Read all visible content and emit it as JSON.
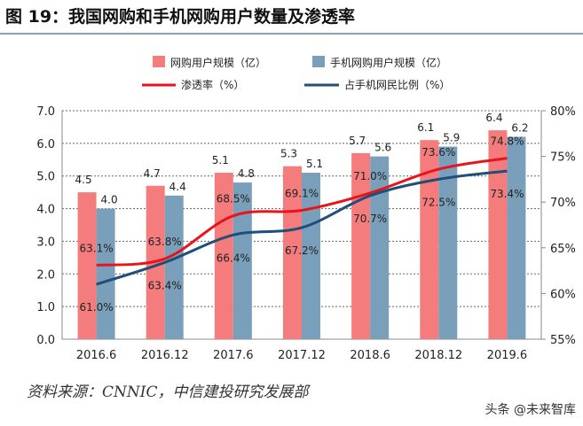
{
  "title": "图 19：我国网购和手机网购用户数量及渗透率",
  "source": "资料来源：CNNIC，中信建投研究发展部",
  "watermark": "头条 @未来智库",
  "chart_data": {
    "type": "bar+line",
    "categories": [
      "2016.6",
      "2016.12",
      "2017.6",
      "2017.12",
      "2018.6",
      "2018.12",
      "2019.6"
    ],
    "bar_series": [
      {
        "name": "网购用户规模（亿）",
        "color": "#f47c7c",
        "values": [
          4.5,
          4.7,
          5.1,
          5.3,
          5.7,
          6.1,
          6.4
        ],
        "labels": [
          "4.5",
          "4.7",
          "5.1",
          "5.3",
          "5.7",
          "6.1",
          "6.4"
        ]
      },
      {
        "name": "手机网购用户规模（亿）",
        "color": "#7a9fbb",
        "values": [
          4.0,
          4.4,
          4.8,
          5.1,
          5.6,
          5.9,
          6.2
        ],
        "labels": [
          "4.0",
          "4.4",
          "4.8",
          "5.1",
          "5.6",
          "5.9",
          "6.2"
        ]
      }
    ],
    "line_series": [
      {
        "name": "渗透率（%）",
        "color": "#e8131b",
        "values": [
          63.1,
          63.8,
          68.5,
          69.1,
          71.0,
          73.6,
          74.8
        ],
        "labels": [
          "63.1%",
          "63.8%",
          "68.5%",
          "69.1%",
          "71.0%",
          "73.6%",
          "74.8%"
        ]
      },
      {
        "name": "占手机网民比例（%）",
        "color": "#1f4e79",
        "values": [
          61.0,
          63.4,
          66.4,
          67.2,
          70.7,
          72.5,
          73.4
        ],
        "labels": [
          "61.0%",
          "63.4%",
          "66.4%",
          "67.2%",
          "70.7%",
          "72.5%",
          "73.4%"
        ]
      }
    ],
    "y_left": {
      "range": [
        0,
        7
      ],
      "ticks": [
        "0.0",
        "1.0",
        "2.0",
        "3.0",
        "4.0",
        "5.0",
        "6.0",
        "7.0"
      ]
    },
    "y_right": {
      "range": [
        55,
        80
      ],
      "ticks": [
        "55%",
        "60%",
        "65%",
        "70%",
        "75%",
        "80%"
      ]
    },
    "grid": "horizontal dashed",
    "legend": "top"
  }
}
